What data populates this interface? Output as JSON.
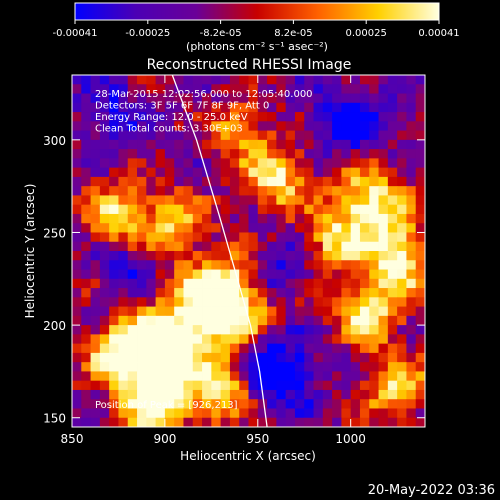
{
  "colorbar": {
    "tick_labels": [
      "-0.00041",
      "-0.00025",
      "-8.2e-05",
      "8.2e-05",
      "0.00025",
      "0.00041"
    ],
    "unit_label": "(photons cm⁻² s⁻¹ asec⁻²)",
    "range": [
      -0.00041,
      0.00041
    ],
    "colors": [
      "#0000ff",
      "#4b00b5",
      "#6a0098",
      "#c80000",
      "#ff6000",
      "#ffd000",
      "#ffffe0"
    ]
  },
  "chart_data": {
    "type": "heatmap",
    "title": "Reconstructed RHESSI Image",
    "xlabel": "Heliocentric X (arcsec)",
    "ylabel": "Heliocentric Y (arcsec)",
    "xlim": [
      850,
      1040
    ],
    "ylim": [
      145,
      335
    ],
    "x_ticks": [
      850,
      900,
      950,
      1000
    ],
    "y_ticks": [
      150,
      200,
      250,
      300
    ],
    "annotations": [
      "28-Mar-2015 12:02:56.000 to 12:05:40.000",
      "Detectors: 3F 5F 6F 7F 8F 9F, Att 0",
      "Energy Range: 12.0 - 25.0 keV",
      "Clean     Total counts: 3.30E+03"
    ],
    "peak_label": "Position of Peak = [926,213]",
    "peak": [
      926,
      213
    ],
    "limb_curve": [
      [
        904,
        335
      ],
      [
        917,
        300
      ],
      [
        929,
        260
      ],
      [
        939,
        225
      ],
      [
        946,
        200
      ],
      [
        951,
        175
      ],
      [
        955,
        145
      ]
    ],
    "hot_sources": [
      {
        "x": 930,
        "y": 212,
        "amp": 1.0,
        "r": 16
      },
      {
        "x": 900,
        "y": 190,
        "amp": 0.7,
        "r": 14
      },
      {
        "x": 875,
        "y": 185,
        "amp": 0.65,
        "r": 12
      },
      {
        "x": 895,
        "y": 160,
        "amp": 0.75,
        "r": 13
      },
      {
        "x": 930,
        "y": 165,
        "amp": 0.6,
        "r": 12
      },
      {
        "x": 1010,
        "y": 265,
        "amp": 0.7,
        "r": 14
      },
      {
        "x": 1025,
        "y": 235,
        "amp": 0.65,
        "r": 13
      },
      {
        "x": 1010,
        "y": 205,
        "amp": 0.6,
        "r": 12
      },
      {
        "x": 960,
        "y": 280,
        "amp": 0.6,
        "r": 12
      },
      {
        "x": 940,
        "y": 305,
        "amp": 0.45,
        "r": 10
      },
      {
        "x": 875,
        "y": 260,
        "amp": 0.55,
        "r": 12
      },
      {
        "x": 905,
        "y": 255,
        "amp": 0.5,
        "r": 11
      },
      {
        "x": 1025,
        "y": 165,
        "amp": 0.5,
        "r": 12
      },
      {
        "x": 990,
        "y": 245,
        "amp": 0.45,
        "r": 10
      }
    ],
    "cold_spots": [
      {
        "x": 960,
        "y": 175,
        "amp": 0.55,
        "r": 14
      },
      {
        "x": 1000,
        "y": 310,
        "amp": 0.4,
        "r": 14
      },
      {
        "x": 870,
        "y": 315,
        "amp": 0.3,
        "r": 12
      },
      {
        "x": 960,
        "y": 230,
        "amp": 0.35,
        "r": 10
      },
      {
        "x": 880,
        "y": 230,
        "amp": 0.3,
        "r": 10
      }
    ]
  },
  "footer": {
    "timestamp": "20-May-2022 03:36"
  }
}
